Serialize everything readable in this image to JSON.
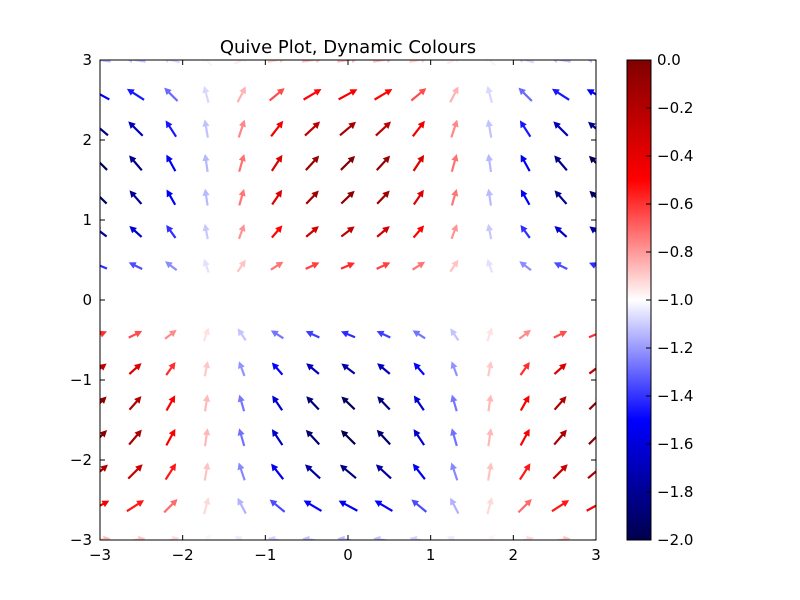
{
  "chart_data": {
    "type": "quiver",
    "title": "Quive Plot, Dynamic Colours",
    "xlabel": "",
    "ylabel": "",
    "xlim": [
      -3,
      3
    ],
    "ylim": [
      -3,
      3
    ],
    "x_ticks": [
      "−3",
      "−2",
      "−1",
      "0",
      "1",
      "2",
      "3"
    ],
    "y_ticks": [
      "−3",
      "−2",
      "−1",
      "0",
      "1",
      "2",
      "3"
    ],
    "grid": false,
    "x": [
      -3,
      -2.571,
      -2.143,
      -1.714,
      -1.286,
      -0.857,
      -0.429,
      0,
      0.429,
      0.857,
      1.286,
      1.714,
      2.143,
      2.571,
      3
    ],
    "y": [
      -3,
      -2.571,
      -2.143,
      -1.714,
      -1.286,
      -0.857,
      -0.429,
      0,
      0.429,
      0.857,
      1.286,
      1.714,
      2.143,
      2.571,
      3
    ],
    "u_formula": "cos(x)*y",
    "v_formula": "sin(y)*y",
    "color_formula": "-1 + sin(y)*cos(x)",
    "colormap": "seismic",
    "colorbar": {
      "range": [
        -2.0,
        0.0
      ],
      "ticks": [
        "0.0",
        "−0.2",
        "−0.4",
        "−0.6",
        "−0.8",
        "−1.0",
        "−1.2",
        "−1.4",
        "−1.6",
        "−1.8",
        "−2.0"
      ],
      "colors": [
        "#00004c",
        "#0000ff",
        "#ffffff",
        "#ff0000",
        "#800000"
      ]
    }
  }
}
